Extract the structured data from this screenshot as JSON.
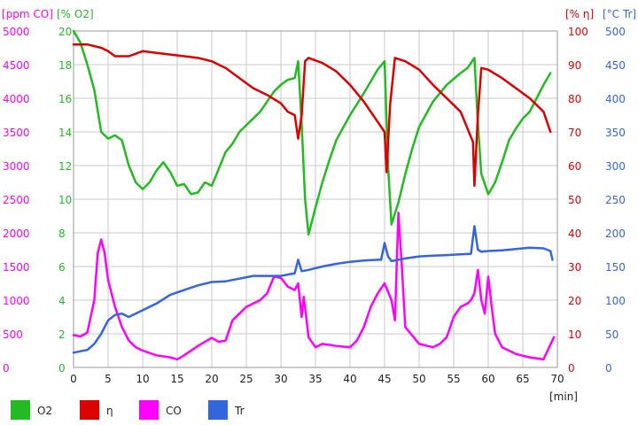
{
  "chart_data": {
    "type": "line",
    "xlabel": "[min]",
    "xlim": [
      0,
      70
    ],
    "x_ticks": [
      0,
      5,
      10,
      15,
      20,
      25,
      30,
      35,
      40,
      45,
      50,
      55,
      60,
      65,
      70
    ],
    "grid": true,
    "legend_position": "bottom-left",
    "axes": [
      {
        "id": "co",
        "unit": "[ppm CO]",
        "color": "#ff00ff",
        "side": "left-outer",
        "ylim": [
          0,
          5000
        ],
        "ticks": [
          0,
          500,
          1000,
          1500,
          2000,
          2500,
          3000,
          3500,
          4000,
          4500,
          5000
        ]
      },
      {
        "id": "o2",
        "unit": "[% O2]",
        "color": "#22bb22",
        "side": "left-inner",
        "ylim": [
          0,
          20
        ],
        "ticks": [
          0,
          2,
          4,
          6,
          8,
          10,
          12,
          14,
          16,
          18,
          20
        ]
      },
      {
        "id": "eta",
        "unit": "[% η]",
        "color": "#dd0000",
        "side": "right-inner",
        "ylim": [
          0,
          100
        ],
        "ticks": [
          0,
          10,
          20,
          30,
          40,
          50,
          60,
          70,
          80,
          90,
          100
        ]
      },
      {
        "id": "tr",
        "unit": "[°C Tr]",
        "color": "#3366dd",
        "side": "right-outer",
        "ylim": [
          0,
          500
        ],
        "ticks": [
          0,
          50,
          100,
          150,
          200,
          250,
          300,
          350,
          400,
          450,
          500
        ]
      }
    ],
    "series": [
      {
        "name": "O2",
        "axis": "o2",
        "color": "#22bb22",
        "x": [
          0,
          1,
          2,
          3,
          4,
          5,
          6,
          7,
          8,
          9,
          10,
          11,
          12,
          13,
          14,
          15,
          16,
          17,
          18,
          19,
          20,
          21,
          22,
          23,
          24,
          25,
          26,
          27,
          28,
          29,
          30,
          31,
          32,
          32.5,
          33,
          33.5,
          34,
          35,
          36,
          37,
          38,
          40,
          42,
          44,
          45,
          45.5,
          46,
          47,
          48,
          49,
          50,
          52,
          54,
          56,
          57,
          58,
          58.5,
          59,
          60,
          61,
          62,
          63,
          64,
          65,
          66,
          67,
          68,
          69
        ],
        "y": [
          20,
          19.3,
          18,
          16.5,
          14,
          13.6,
          13.8,
          13.5,
          12,
          11,
          10.6,
          11,
          11.7,
          12.2,
          11.6,
          10.8,
          10.9,
          10.3,
          10.4,
          11,
          10.8,
          11.8,
          12.8,
          13.3,
          14,
          14.4,
          14.8,
          15.2,
          15.8,
          16.4,
          16.8,
          17.1,
          17.2,
          18.2,
          14.5,
          10,
          7.9,
          9.5,
          11,
          12.3,
          13.5,
          15,
          16.3,
          17.7,
          18.2,
          12,
          8.5,
          9.8,
          11.5,
          13,
          14.3,
          15.8,
          16.8,
          17.5,
          17.8,
          18.4,
          14.5,
          11.5,
          10.3,
          11,
          12.2,
          13.5,
          14.2,
          14.8,
          15.2,
          16,
          16.8,
          17.5
        ]
      },
      {
        "name": "η",
        "axis": "eta",
        "color": "#dd0000",
        "x": [
          0,
          2,
          4,
          5,
          6,
          8,
          10,
          12,
          14,
          16,
          18,
          20,
          22,
          24,
          26,
          28,
          30,
          31,
          32,
          32.5,
          33,
          33.5,
          34,
          36,
          38,
          40,
          42,
          44,
          45,
          45.3,
          45.8,
          46.5,
          48,
          50,
          52,
          54,
          56,
          57,
          57.8,
          58,
          58.5,
          59,
          60,
          62,
          64,
          66,
          68,
          69
        ],
        "y": [
          96,
          96,
          95,
          94,
          92.5,
          92.5,
          94,
          93.5,
          93,
          92.5,
          92,
          91,
          89,
          86,
          83,
          81,
          78.5,
          76,
          75,
          68,
          75,
          91,
          92,
          90.5,
          88,
          84,
          79,
          73,
          70,
          58,
          78,
          92,
          91,
          88.5,
          84,
          80,
          76,
          71,
          67,
          54,
          75,
          89,
          88.5,
          86,
          83,
          80,
          76,
          70
        ]
      },
      {
        "name": "CO",
        "axis": "co",
        "color": "#ff00ff",
        "x": [
          0,
          1,
          2,
          3,
          3.5,
          4,
          4.5,
          5,
          5.5,
          6,
          7,
          8,
          9,
          10,
          12,
          14,
          15,
          16,
          18,
          20,
          21,
          22,
          23,
          24,
          25,
          26,
          27,
          28,
          29,
          30,
          31,
          32,
          32.5,
          33,
          33.3,
          33.6,
          34,
          35,
          36,
          38,
          40,
          41,
          42,
          43,
          44,
          45,
          46,
          46.5,
          47,
          47.5,
          48,
          50,
          52,
          53,
          54,
          55,
          56,
          57,
          57.5,
          58,
          58.5,
          59,
          59.5,
          60,
          60.5,
          61,
          62,
          64,
          66,
          68,
          69.5
        ],
        "y": [
          480,
          460,
          520,
          1000,
          1700,
          1900,
          1700,
          1300,
          1100,
          900,
          600,
          400,
          300,
          250,
          180,
          150,
          120,
          180,
          320,
          440,
          380,
          400,
          700,
          800,
          900,
          950,
          1000,
          1100,
          1350,
          1330,
          1200,
          1150,
          1250,
          750,
          1050,
          800,
          450,
          300,
          350,
          320,
          300,
          400,
          600,
          900,
          1100,
          1250,
          1000,
          700,
          2300,
          1500,
          600,
          350,
          300,
          350,
          450,
          750,
          900,
          950,
          1000,
          1100,
          1450,
          1000,
          800,
          1350,
          900,
          500,
          300,
          200,
          150,
          120,
          450
        ]
      },
      {
        "name": "Tr",
        "axis": "tr",
        "color": "#3366dd",
        "x": [
          0,
          2,
          3,
          4,
          5,
          6,
          7,
          8,
          10,
          12,
          14,
          16,
          18,
          20,
          22,
          24,
          26,
          28,
          30,
          32,
          32.5,
          33,
          34,
          36,
          38,
          40,
          42,
          44,
          44.5,
          45,
          45.5,
          46,
          48,
          50,
          52,
          54,
          56,
          57.5,
          58,
          58.5,
          59,
          60,
          62,
          64,
          66,
          68,
          69,
          69.3
        ],
        "y": [
          22,
          26,
          35,
          50,
          70,
          78,
          80,
          75,
          85,
          95,
          108,
          115,
          122,
          127,
          128,
          132,
          136,
          136,
          136,
          140,
          160,
          143,
          145,
          150,
          154,
          157,
          159,
          160,
          160,
          185,
          165,
          158,
          162,
          165,
          166,
          167,
          168,
          169,
          210,
          175,
          172,
          173,
          174,
          176,
          178,
          177,
          173,
          160
        ]
      }
    ]
  }
}
